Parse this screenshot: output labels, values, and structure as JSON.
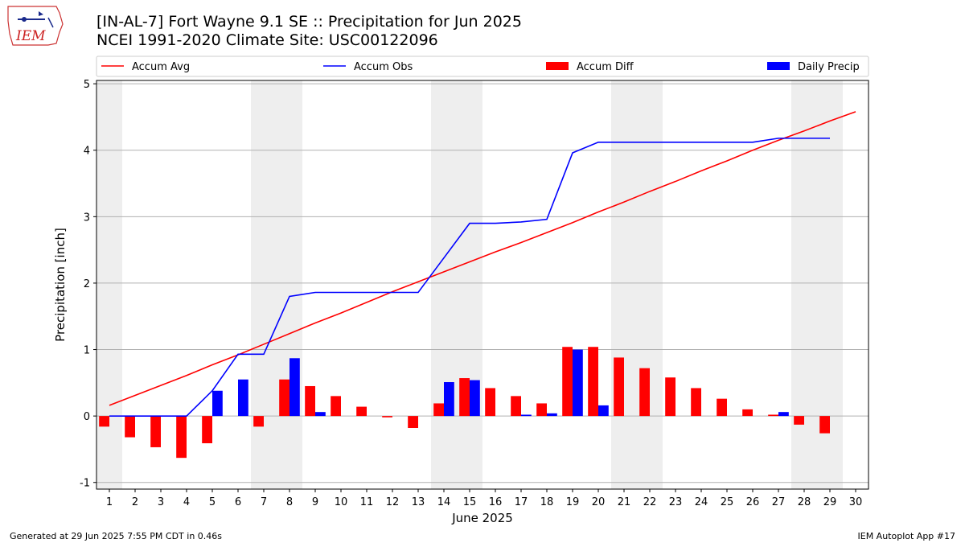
{
  "header": {
    "title_line1": "[IN-AL-7] Fort Wayne 9.1 SE :: Precipitation for Jun 2025",
    "title_line2": "NCEI 1991-2020 Climate Site: USC00122096",
    "logo_text": "IEM"
  },
  "footer": {
    "generated": "Generated at 29 Jun 2025 7:55 PM CDT in 0.46s",
    "app": "IEM Autoplot App #17"
  },
  "colors": {
    "avg": "#ff0000",
    "obs": "#0000ff",
    "diff": "#ff0000",
    "daily": "#0000ff",
    "weekend_band": "#eeeeee",
    "grid": "#b0b0b0"
  },
  "chart_data": {
    "type": "bar",
    "xlabel": "June 2025",
    "ylabel": "Precipitation [inch]",
    "xlim": [
      0.5,
      30.5
    ],
    "ylim": [
      -1.1,
      5.05
    ],
    "yticks": [
      -1,
      0,
      1,
      2,
      3,
      4,
      5
    ],
    "x_ticks": [
      "1",
      "2",
      "3",
      "4",
      "5",
      "6",
      "7",
      "8",
      "9",
      "10",
      "11",
      "12",
      "13",
      "14",
      "15",
      "16",
      "17",
      "18",
      "19",
      "20",
      "21",
      "22",
      "23",
      "24",
      "25",
      "26",
      "27",
      "28",
      "29",
      "30"
    ],
    "grid": "horizontal",
    "legend_position": "top",
    "weekend_bands": [
      [
        0.5,
        1.5
      ],
      [
        6.5,
        8.5
      ],
      [
        13.5,
        15.5
      ],
      [
        20.5,
        22.5
      ],
      [
        27.5,
        29.5
      ]
    ],
    "series": [
      {
        "name": "Accum Avg",
        "type": "line",
        "x": [
          1,
          2,
          3,
          4,
          5,
          6,
          7,
          8,
          9,
          10,
          11,
          12,
          13,
          14,
          15,
          16,
          17,
          18,
          19,
          20,
          21,
          22,
          23,
          24,
          25,
          26,
          27,
          28,
          29,
          30
        ],
        "values": [
          0.16,
          0.31,
          0.46,
          0.61,
          0.77,
          0.92,
          1.08,
          1.24,
          1.4,
          1.55,
          1.71,
          1.87,
          2.02,
          2.17,
          2.32,
          2.47,
          2.61,
          2.76,
          2.91,
          3.07,
          3.22,
          3.38,
          3.53,
          3.69,
          3.84,
          4.0,
          4.15,
          4.29,
          4.44,
          4.58
        ]
      },
      {
        "name": "Accum Obs",
        "type": "line",
        "x": [
          1,
          2,
          3,
          4,
          5,
          6,
          7,
          8,
          9,
          10,
          11,
          12,
          13,
          14,
          15,
          16,
          17,
          18,
          19,
          20,
          21,
          22,
          23,
          24,
          25,
          26,
          27,
          28,
          29
        ],
        "values": [
          0.0,
          0.0,
          0.0,
          0.0,
          0.38,
          0.93,
          0.93,
          1.8,
          1.86,
          1.86,
          1.86,
          1.86,
          1.86,
          2.38,
          2.9,
          2.9,
          2.92,
          2.96,
          3.96,
          4.12,
          4.12,
          4.12,
          4.12,
          4.12,
          4.12,
          4.12,
          4.18,
          4.18,
          4.18
        ]
      },
      {
        "name": "Accum Diff",
        "type": "bar",
        "x": [
          1,
          2,
          3,
          4,
          5,
          6,
          7,
          8,
          9,
          10,
          11,
          12,
          13,
          14,
          15,
          16,
          17,
          18,
          19,
          20,
          21,
          22,
          23,
          24,
          25,
          26,
          27,
          28,
          29
        ],
        "values": [
          -0.16,
          -0.32,
          -0.47,
          -0.63,
          -0.41,
          0.0,
          -0.16,
          0.55,
          0.45,
          0.3,
          0.14,
          -0.02,
          -0.18,
          0.19,
          0.57,
          0.42,
          0.3,
          0.19,
          1.04,
          1.04,
          0.88,
          0.72,
          0.58,
          0.42,
          0.26,
          0.1,
          0.02,
          -0.13,
          -0.26
        ]
      },
      {
        "name": "Daily Precip",
        "type": "bar",
        "x": [
          1,
          2,
          3,
          4,
          5,
          6,
          7,
          8,
          9,
          10,
          11,
          12,
          13,
          14,
          15,
          16,
          17,
          18,
          19,
          20,
          21,
          22,
          23,
          24,
          25,
          26,
          27,
          28,
          29
        ],
        "values": [
          0.0,
          0.0,
          0.0,
          0.0,
          0.38,
          0.55,
          0.0,
          0.87,
          0.06,
          0.0,
          0.0,
          0.0,
          0.0,
          0.51,
          0.54,
          0.0,
          0.02,
          0.04,
          1.0,
          0.16,
          0.0,
          0.0,
          0.0,
          0.0,
          0.0,
          0.0,
          0.06,
          0.0,
          0.0
        ]
      }
    ]
  }
}
